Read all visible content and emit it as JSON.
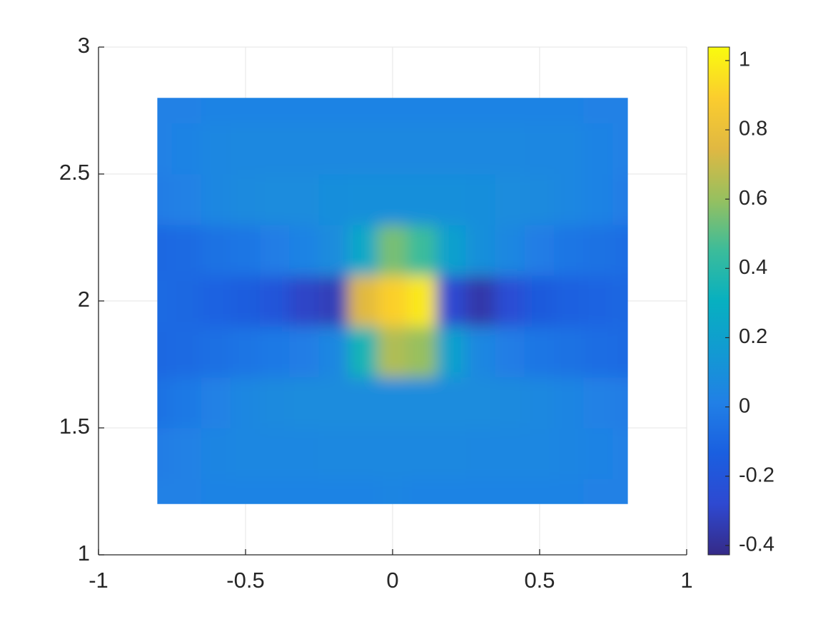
{
  "chart_data": {
    "type": "heatmap",
    "x": [
      -0.8,
      -0.7,
      -0.6,
      -0.5,
      -0.4,
      -0.3,
      -0.2,
      -0.1,
      0,
      0.1,
      0.2,
      0.3,
      0.4,
      0.5,
      0.6,
      0.7,
      0.8
    ],
    "y": [
      1.2,
      1.4,
      1.6,
      1.8,
      2.0,
      2.2,
      2.4,
      2.6,
      2.8
    ],
    "z": [
      [
        0.02,
        0.02,
        0.03,
        0.03,
        0.03,
        0.03,
        0.03,
        0.03,
        0.04,
        0.03,
        0.03,
        0.03,
        0.03,
        0.03,
        0.03,
        0.02,
        0.02
      ],
      [
        0.0,
        0.02,
        0.04,
        0.05,
        0.05,
        0.05,
        0.06,
        0.06,
        0.06,
        0.06,
        0.06,
        0.05,
        0.05,
        0.05,
        0.04,
        0.03,
        0.02
      ],
      [
        -0.05,
        -0.02,
        0.02,
        0.05,
        0.07,
        0.08,
        0.08,
        0.08,
        0.08,
        0.08,
        0.08,
        0.08,
        0.07,
        0.06,
        0.04,
        0.02,
        0.0
      ],
      [
        -0.1,
        -0.08,
        -0.06,
        -0.04,
        -0.02,
        0.0,
        0.05,
        0.35,
        0.65,
        0.6,
        0.2,
        0.05,
        0.0,
        -0.03,
        -0.05,
        -0.07,
        -0.08
      ],
      [
        -0.08,
        -0.1,
        -0.12,
        -0.15,
        -0.2,
        -0.3,
        -0.33,
        0.75,
        0.9,
        0.98,
        -0.28,
        -0.36,
        -0.25,
        -0.17,
        -0.13,
        -0.11,
        -0.1
      ],
      [
        -0.1,
        -0.08,
        -0.05,
        -0.03,
        0.0,
        0.03,
        0.08,
        0.25,
        0.55,
        0.45,
        0.2,
        0.1,
        0.05,
        0.0,
        -0.03,
        -0.05,
        -0.07
      ],
      [
        0.0,
        0.02,
        0.05,
        0.07,
        0.08,
        0.08,
        0.09,
        0.1,
        0.1,
        0.1,
        0.1,
        0.09,
        0.08,
        0.07,
        0.05,
        0.03,
        0.0
      ],
      [
        0.02,
        0.03,
        0.05,
        0.06,
        0.06,
        0.06,
        0.06,
        0.06,
        0.06,
        0.06,
        0.06,
        0.06,
        0.06,
        0.05,
        0.05,
        0.03,
        0.02
      ],
      [
        0.02,
        0.02,
        0.03,
        0.03,
        0.03,
        0.03,
        0.03,
        0.03,
        0.03,
        0.03,
        0.03,
        0.03,
        0.03,
        0.03,
        0.03,
        0.02,
        0.02
      ]
    ],
    "xlim": [
      -1,
      1
    ],
    "ylim": [
      1,
      3
    ],
    "xticks": [
      -1,
      -0.5,
      0,
      0.5,
      1
    ],
    "yticks": [
      1,
      1.5,
      2,
      2.5,
      3
    ],
    "grid": true,
    "colormap": "parula",
    "clim": [
      -0.427,
      1.039
    ],
    "cticks": [
      -0.4,
      -0.2,
      0,
      0.2,
      0.4,
      0.6,
      0.8,
      1
    ]
  }
}
